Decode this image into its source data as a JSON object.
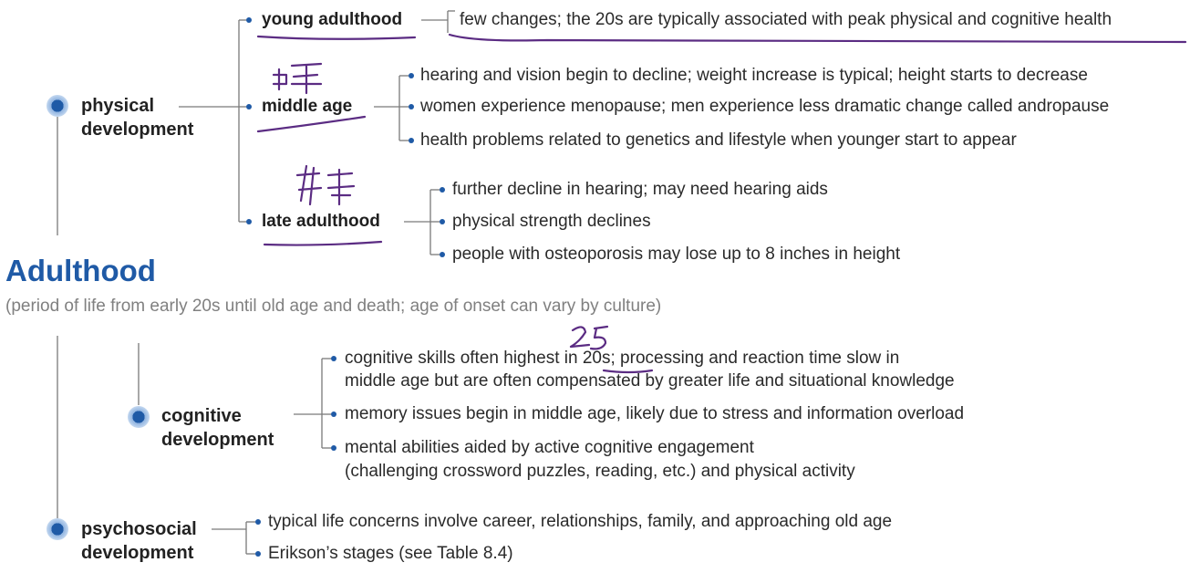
{
  "title": "Adulthood",
  "subtitle": "(period of life from early 20s until old age and death; age of onset can vary by culture)",
  "colors": {
    "accent": "#1f5aa6",
    "line": "#7a7a7a",
    "ink": "#5b2c83"
  },
  "physical": {
    "label": "physical development",
    "young": {
      "label": "young adulthood",
      "items": [
        "few changes; the 20s are typically associated with peak physical and cognitive health"
      ]
    },
    "middle": {
      "label": "middle age",
      "items": [
        "hearing and vision begin to decline; weight increase is typical; height starts to decrease",
        "women experience menopause; men experience less dramatic change called andropause",
        "health problems related to genetics and lifestyle when younger start to appear"
      ]
    },
    "late": {
      "label": "late adulthood",
      "items": [
        "further decline in hearing; may need hearing aids",
        "physical strength declines",
        "people with osteoporosis may lose up to 8 inches in height"
      ]
    }
  },
  "cognitive": {
    "label": "cognitive development",
    "items": [
      {
        "line1": "cognitive skills often highest in 20s; processing and reaction time slow in",
        "line2": "middle age but are often compensated by greater life and situational knowledge"
      },
      {
        "line1": "memory issues begin in middle age, likely due to stress and information overload"
      },
      {
        "line1": "mental abilities aided by active cognitive engagement",
        "line2": "(challenging crossword puzzles, reading, etc.) and physical activity"
      }
    ]
  },
  "psychosocial": {
    "label": "psychosocial development",
    "items": [
      "typical life concerns involve career, relationships, family, and approaching old age",
      "Erikson’s stages (see Table 8.4)"
    ]
  }
}
